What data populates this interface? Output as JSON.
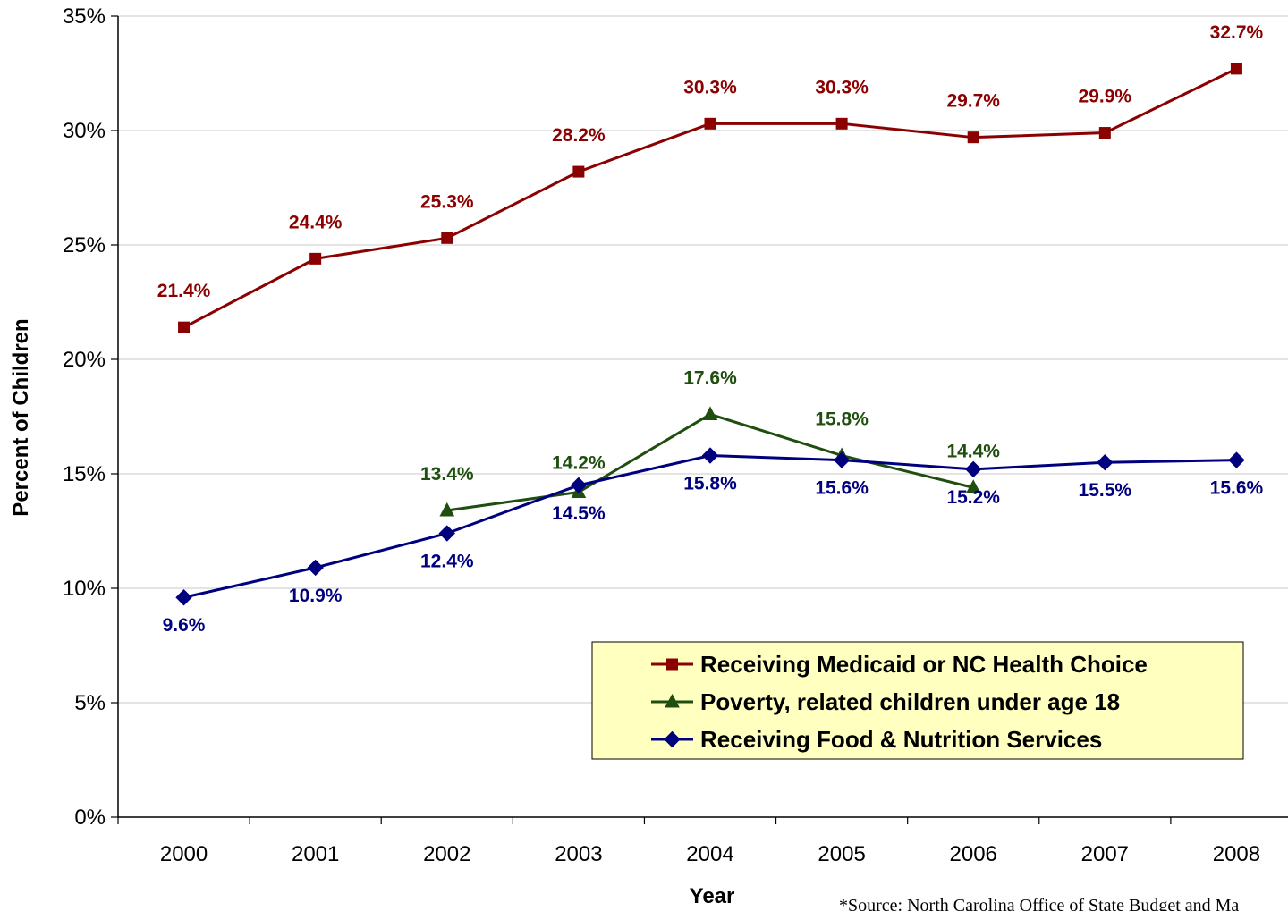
{
  "chart_data": {
    "type": "line",
    "x": [
      "2000",
      "2001",
      "2002",
      "2003",
      "2004",
      "2005",
      "2006",
      "2007",
      "2008"
    ],
    "xlabel": "Year",
    "ylabel": "Percent of Children",
    "ylim": [
      0,
      35
    ],
    "yticks": [
      "0%",
      "5%",
      "10%",
      "15%",
      "20%",
      "25%",
      "30%",
      "35%"
    ],
    "grid": "horizontal",
    "legend_position": "lower-right",
    "series": [
      {
        "name": "Receiving Medicaid or NC Health Choice",
        "color": "#8B0000",
        "marker": "square",
        "values": [
          21.4,
          24.4,
          25.3,
          28.2,
          30.3,
          30.3,
          29.7,
          29.9,
          32.7
        ],
        "labels": [
          "21.4%",
          "24.4%",
          "25.3%",
          "28.2%",
          "30.3%",
          "30.3%",
          "29.7%",
          "29.9%",
          "32.7%"
        ]
      },
      {
        "name": "Poverty, related children under age 18",
        "color": "#1F4E0F",
        "marker": "triangle",
        "values": [
          null,
          null,
          13.4,
          14.2,
          17.6,
          15.8,
          14.4,
          null,
          null
        ],
        "labels": [
          null,
          null,
          "13.4%",
          "14.2%",
          "17.6%",
          "15.8%",
          "14.4%",
          null,
          null
        ]
      },
      {
        "name": "Receiving Food & Nutrition Services",
        "color": "#00007F",
        "marker": "diamond",
        "values": [
          9.6,
          10.9,
          12.4,
          14.5,
          15.8,
          15.6,
          15.2,
          15.5,
          15.6
        ],
        "labels": [
          "9.6%",
          "10.9%",
          "12.4%",
          "14.5%",
          "15.8%",
          "15.6%",
          "15.2%",
          "15.5%",
          "15.6%"
        ]
      }
    ],
    "source": "*Source: North Carolina Office of State Budget and Ma"
  }
}
